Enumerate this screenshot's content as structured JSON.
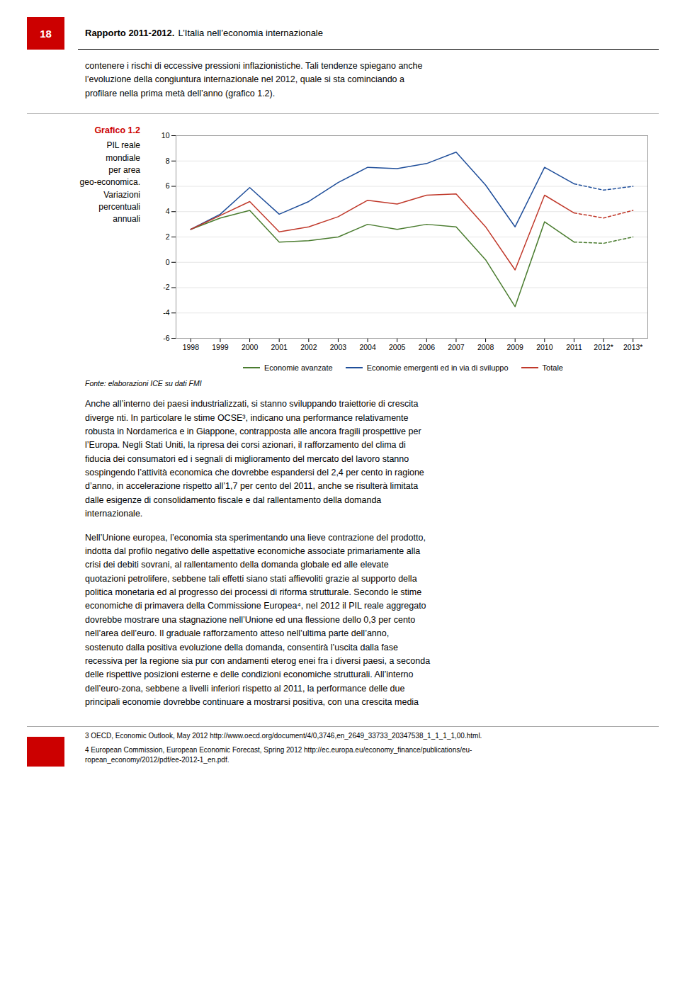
{
  "chart_data": {
    "type": "line",
    "title": "Grafico 1.2",
    "subtitle": "PIL reale\nmondiale\nper area\ngeo-economica.\nVariazioni\npercentuali\nannuali",
    "x": [
      1998,
      1999,
      2000,
      2001,
      2002,
      2003,
      2004,
      2005,
      2006,
      2007,
      2008,
      2009,
      2010,
      2011,
      2012,
      2013
    ],
    "series": [
      {
        "name": "Economie avanzate",
        "color": "#4a7c2f",
        "line_style": "solid",
        "values": [
          2.6,
          3.5,
          4.1,
          1.6,
          1.7,
          2.0,
          3.0,
          2.6,
          3.0,
          2.8,
          0.2,
          -3.5,
          3.2,
          1.6,
          null,
          null
        ]
      },
      {
        "name": "Economie avanzate",
        "color": "#4a7c2f",
        "line_style": "dashed",
        "values": [
          null,
          null,
          null,
          null,
          null,
          null,
          null,
          null,
          null,
          null,
          null,
          null,
          null,
          1.6,
          1.5,
          2.0
        ]
      },
      {
        "name": "Economie emergenti ed in via di sviluppo",
        "color": "#1f4e9a",
        "line_style": "solid",
        "values": [
          2.6,
          3.8,
          5.9,
          3.8,
          4.8,
          6.3,
          7.5,
          7.4,
          7.8,
          8.7,
          6.1,
          2.8,
          7.5,
          6.2,
          null,
          null
        ]
      },
      {
        "name": "Economie emergenti ed in via di sviluppo",
        "color": "#1f4e9a",
        "line_style": "dashed",
        "values": [
          null,
          null,
          null,
          null,
          null,
          null,
          null,
          null,
          null,
          null,
          null,
          null,
          null,
          6.2,
          5.7,
          6.0
        ]
      },
      {
        "name": "Totale",
        "color": "#c0392b",
        "line_style": "solid",
        "values": [
          2.6,
          3.7,
          4.8,
          2.4,
          2.8,
          3.6,
          4.9,
          4.6,
          5.3,
          5.4,
          2.8,
          -0.6,
          5.3,
          3.9,
          null,
          null
        ]
      },
      {
        "name": "Totale",
        "color": "#c0392b",
        "line_style": "dashed",
        "values": [
          null,
          null,
          null,
          null,
          null,
          null,
          null,
          null,
          null,
          null,
          null,
          null,
          null,
          3.9,
          3.5,
          4.1
        ]
      }
    ],
    "xlim": [
      1997.5,
      2013.5
    ],
    "xticks": [
      1998,
      1999,
      2000,
      2001,
      2002,
      2003,
      2004,
      2005,
      2006,
      2007,
      2008,
      2009,
      2010,
      2011,
      {
        "value": 2012,
        "label": "2012*"
      },
      {
        "value": 2013,
        "label": "2013*"
      }
    ],
    "ylim": [
      -6,
      10
    ],
    "yticks": [
      -6,
      -4,
      -2,
      0,
      2,
      4,
      6,
      8,
      10
    ],
    "grid": true,
    "legend": "bottom",
    "annotations": [
      "18",
      "Rapporto 2011-2012.",
      "L’Italia nell’economia internazionale",
      "contenere i rischi di eccessive pressioni inflazionistiche. Tali tendenze spiegano anche\nl’evoluzione della congiuntura internazionale nel 2012, quale si sta cominciando a\nprofilare nella prima metà dell’anno (grafico 1.2).",
      "Fonte: elaborazioni ICE su dati FMI",
      "Anche all’interno dei paesi industrializzati, si stanno sviluppando traiettorie di crescita\ndiverge nti. In particolare le stime OCSE³, indicano una performance relativamente\nrobusta in Nordamerica e in Giappone, contrapposta alle ancora fragili prospettive per\nl’Europa. Negli Stati Uniti, la ripresa dei corsi azionari, il rafforzamento del clima di\nfiducia dei consumatori ed i segnali di miglioramento del mercato del lavoro stanno\nsospingendo l’attività economica che dovrebbe espandersi del 2,4 per cento in ragione\nd’anno, in accelerazione rispetto all’1,7 per cento del 2011, anche se risulterà limitata\ndalle esigenze di consolidamento fiscale e dal rallentamento della domanda\ninternazionale.",
      "Nell’Unione europea, l’economia sta sperimentando una lieve contrazione del prodotto,\nindotta dal profilo negativo delle aspettative economiche associate primariamente alla\ncrisi dei debiti sovrani, al rallentamento della domanda globale ed alle elevate\nquotazioni petrolifere, sebbene tali effetti siano stati affievoliti grazie al supporto della\npolitica monetaria ed al progresso dei processi di riforma strutturale. Secondo le stime\neconomiche di primavera della Commissione Europea⁴, nel 2012 il PIL reale aggregato\ndovrebbe mostrare una stagnazione nell’Unione ed una flessione dello 0,3 per cento\nnell’area dell’euro. Il graduale rafforzamento atteso nell’ultima parte dell’anno,\nsostenuto dalla positiva evoluzione della domanda, consentirà l’uscita dalla fase\nrecessiva per la regione sia pur con andamenti eterog enei fra i diversi paesi, a seconda\ndelle rispettive posizioni esterne e delle condizioni economiche strutturali. All’interno\ndell’euro-zona, sebbene a livelli inferiori rispetto al 2011, la performance delle due\nprincipali economie dovrebbe continuare a mostrarsi positiva, con una crescita media",
      "3  OECD, Economic Outlook, May 2012  http://www.oecd.org/document/4/0,3746,en_2649_33733_20347538_1_1_1_1,00.html.",
      "4  European Commission, European Economic Forecast, Spring 2012  http://ec.europa.eu/economy_finance/publications/eu-\nropean_economy/2012/pdf/ee-2012-1_en.pdf."
    ]
  }
}
